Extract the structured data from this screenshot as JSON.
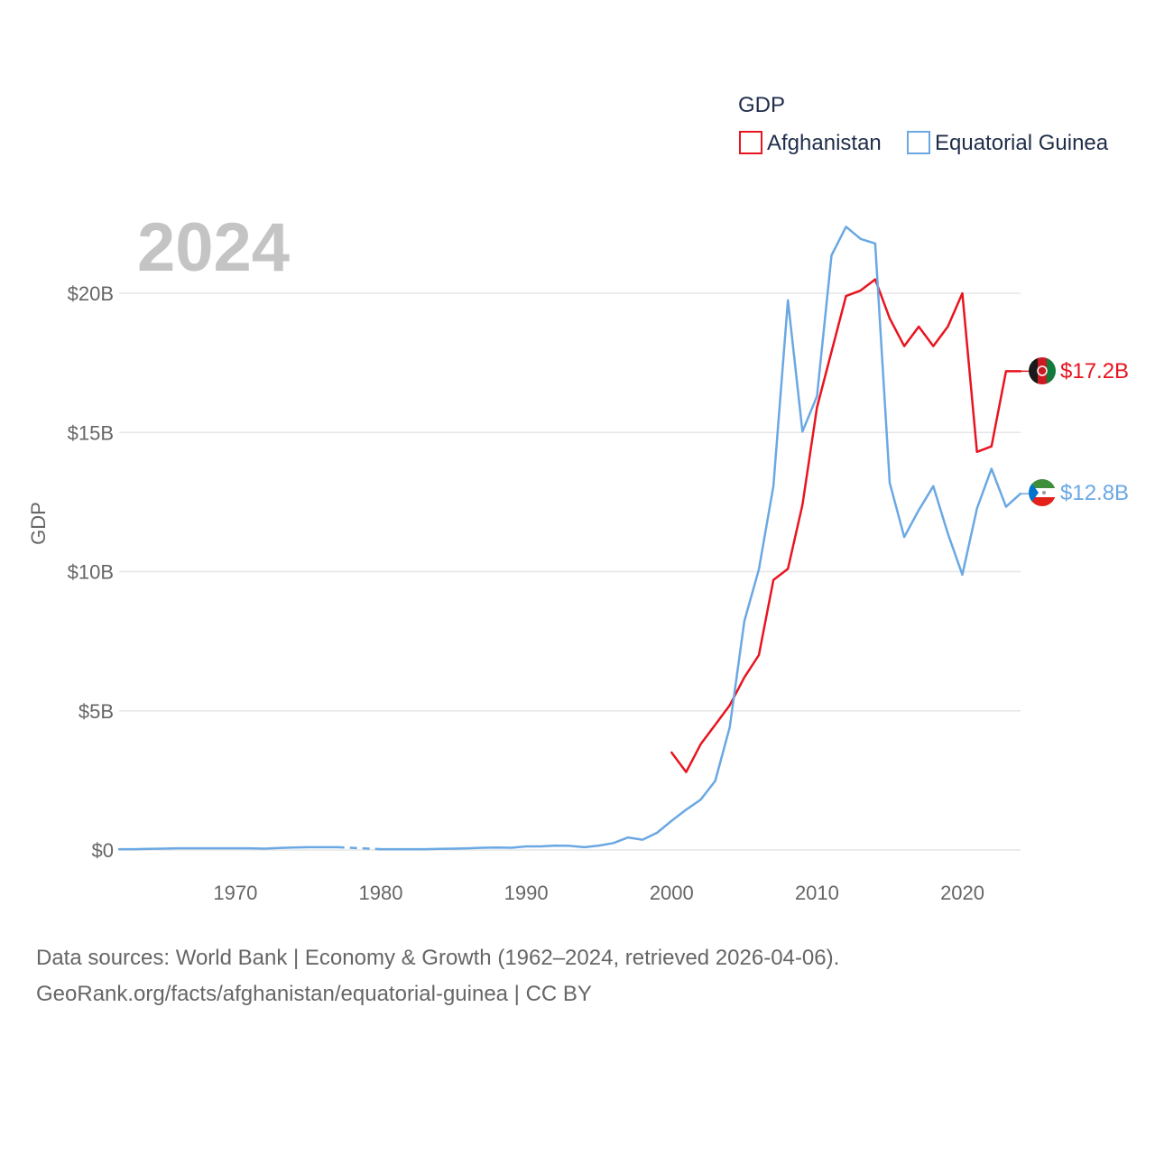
{
  "chart_data": {
    "type": "line",
    "title": "",
    "ylabel": "GDP",
    "xlabel": "",
    "xlim": [
      1962,
      2024
    ],
    "ylim": [
      0,
      20
    ],
    "y_unit": "billion USD",
    "xticks": [
      1970,
      1980,
      1990,
      2000,
      2010,
      2020
    ],
    "xtick_labels": [
      "1970",
      "1980",
      "1990",
      "2000",
      "2010",
      "2020"
    ],
    "yticks": [
      0,
      5,
      10,
      15,
      20
    ],
    "ytick_labels": [
      "$0",
      "$5B",
      "$10B",
      "$15B",
      "$20B"
    ],
    "year_label": "2024",
    "legend": {
      "title": "GDP",
      "placement": "top-right",
      "entries": [
        "Afghanistan",
        "Equatorial Guinea"
      ]
    },
    "series": [
      {
        "name": "Afghanistan",
        "color": "#e8141f",
        "end_label": "$17.2B",
        "x": [
          2000,
          2001,
          2002,
          2003,
          2004,
          2005,
          2006,
          2007,
          2008,
          2009,
          2010,
          2011,
          2012,
          2013,
          2014,
          2015,
          2016,
          2017,
          2018,
          2019,
          2020,
          2021,
          2022,
          2023,
          2024
        ],
        "values": [
          3.5,
          2.8,
          3.8,
          4.5,
          5.2,
          6.2,
          7.0,
          9.7,
          10.1,
          12.4,
          15.9,
          17.9,
          19.9,
          20.1,
          20.5,
          19.1,
          18.1,
          18.8,
          18.1,
          18.8,
          20.0,
          14.3,
          14.5,
          17.2,
          17.2
        ]
      },
      {
        "name": "Equatorial Guinea",
        "color": "#6aa8e3",
        "end_label": "$12.8B",
        "gap_years": [
          1977,
          1980
        ],
        "x": [
          1962,
          1963,
          1964,
          1965,
          1966,
          1967,
          1968,
          1969,
          1970,
          1971,
          1972,
          1973,
          1974,
          1975,
          1976,
          1977,
          1980,
          1981,
          1982,
          1983,
          1984,
          1985,
          1986,
          1987,
          1988,
          1989,
          1990,
          1991,
          1992,
          1993,
          1994,
          1995,
          1996,
          1997,
          1998,
          1999,
          2000,
          2001,
          2002,
          2003,
          2004,
          2005,
          2006,
          2007,
          2008,
          2009,
          2010,
          2011,
          2012,
          2013,
          2014,
          2015,
          2016,
          2017,
          2018,
          2019,
          2020,
          2021,
          2022,
          2023,
          2024
        ],
        "values": [
          0.03,
          0.03,
          0.04,
          0.05,
          0.06,
          0.06,
          0.06,
          0.06,
          0.06,
          0.06,
          0.05,
          0.07,
          0.09,
          0.1,
          0.1,
          0.1,
          0.03,
          0.03,
          0.03,
          0.03,
          0.04,
          0.05,
          0.06,
          0.08,
          0.09,
          0.08,
          0.13,
          0.13,
          0.16,
          0.15,
          0.1,
          0.16,
          0.25,
          0.45,
          0.37,
          0.62,
          1.05,
          1.45,
          1.81,
          2.48,
          4.41,
          8.22,
          10.08,
          13.07,
          19.75,
          15.03,
          16.3,
          21.36,
          22.39,
          21.95,
          21.79,
          13.19,
          11.24,
          12.21,
          13.07,
          11.37,
          9.89,
          12.27,
          13.7,
          12.33,
          12.8
        ]
      }
    ]
  },
  "footer": {
    "line1": "Data sources: World Bank | Economy & Growth (1962–2024, retrieved 2026-04-06).",
    "line2": "GeoRank.org/facts/afghanistan/equatorial-guinea | CC BY"
  }
}
